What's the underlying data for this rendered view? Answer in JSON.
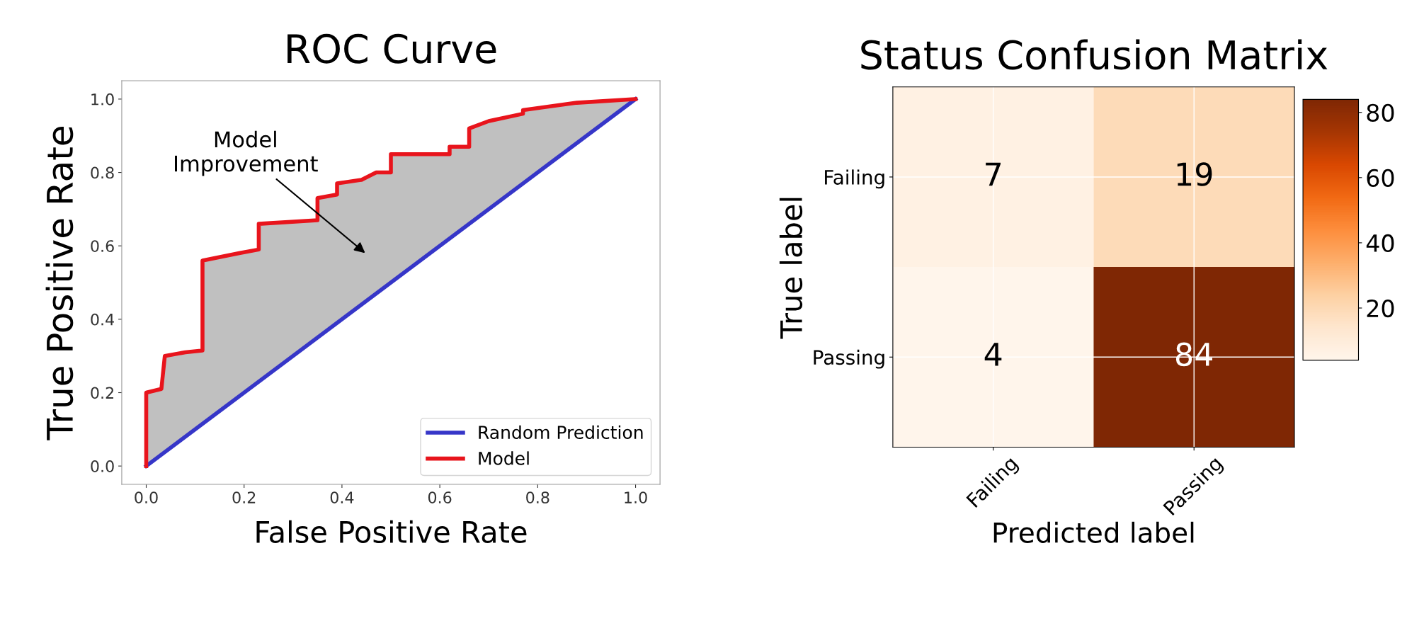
{
  "chart_data": [
    {
      "type": "line",
      "title": "ROC Curve",
      "xlabel": "False Positive Rate",
      "ylabel": "True Positive Rate",
      "xlim": [
        -0.05,
        1.05
      ],
      "ylim": [
        -0.05,
        1.05
      ],
      "xticks": [
        {
          "value": 0,
          "label": "0.0"
        },
        {
          "value": 0.2,
          "label": "0.2"
        },
        {
          "value": 0.4,
          "label": "0.4"
        },
        {
          "value": 0.6,
          "label": "0.6"
        },
        {
          "value": 0.8,
          "label": "0.8"
        },
        {
          "value": 1,
          "label": "1.0"
        }
      ],
      "yticks": [
        {
          "value": 0,
          "label": "0.0"
        },
        {
          "value": 0.2,
          "label": "0.2"
        },
        {
          "value": 0.4,
          "label": "0.4"
        },
        {
          "value": 0.6,
          "label": "0.6"
        },
        {
          "value": 0.8,
          "label": "0.8"
        },
        {
          "value": 1,
          "label": "1.0"
        }
      ],
      "series": [
        {
          "name": "Random Prediction",
          "color": "#3636c8",
          "x": [
            0,
            1
          ],
          "values": [
            0,
            1
          ]
        },
        {
          "name": "Model",
          "color": "#e8141c",
          "x": [
            0,
            0,
            0.031,
            0.038,
            0.08,
            0.115,
            0.115,
            0.19,
            0.23,
            0.23,
            0.35,
            0.35,
            0.39,
            0.39,
            0.44,
            0.47,
            0.5,
            0.5,
            0.62,
            0.62,
            0.66,
            0.66,
            0.7,
            0.77,
            0.77,
            0.88,
            1
          ],
          "values": [
            0,
            0.2,
            0.21,
            0.3,
            0.31,
            0.315,
            0.56,
            0.58,
            0.59,
            0.66,
            0.67,
            0.73,
            0.74,
            0.77,
            0.78,
            0.8,
            0.8,
            0.85,
            0.85,
            0.87,
            0.87,
            0.92,
            0.94,
            0.96,
            0.97,
            0.99,
            1
          ],
          "lower": [
            0,
            0,
            0.031,
            0.038,
            0.08,
            0.115,
            0.115,
            0.19,
            0.23,
            0.23,
            0.35,
            0.35,
            0.39,
            0.39,
            0.44,
            0.47,
            0.5,
            0.5,
            0.62,
            0.62,
            0.66,
            0.66,
            0.7,
            0.77,
            0.77,
            0.88,
            1
          ],
          "upper": [
            0,
            0.2,
            0.21,
            0.3,
            0.31,
            0.315,
            0.56,
            0.58,
            0.59,
            0.66,
            0.67,
            0.73,
            0.74,
            0.77,
            0.78,
            0.8,
            0.8,
            0.85,
            0.85,
            0.87,
            0.87,
            0.92,
            0.94,
            0.96,
            0.97,
            0.99,
            1
          ]
        }
      ],
      "annotations": [
        "Model\nImprovement"
      ],
      "legend": "bottom right",
      "grid": false,
      "marker": "none",
      "line_style": "solid"
    },
    {
      "type": "heatmap",
      "title": "Status Confusion Matrix",
      "xlabel": "Predicted label",
      "ylabel": "True label",
      "categories": [
        "Failing",
        "Passing"
      ],
      "y_categories": [
        "Failing",
        "Passing"
      ],
      "cells": [
        [
          7,
          19
        ],
        [
          4,
          84
        ]
      ],
      "clim": [
        4,
        84
      ],
      "cticks": [
        20,
        40,
        60,
        80
      ],
      "data_labels": true,
      "grid": true
    }
  ]
}
